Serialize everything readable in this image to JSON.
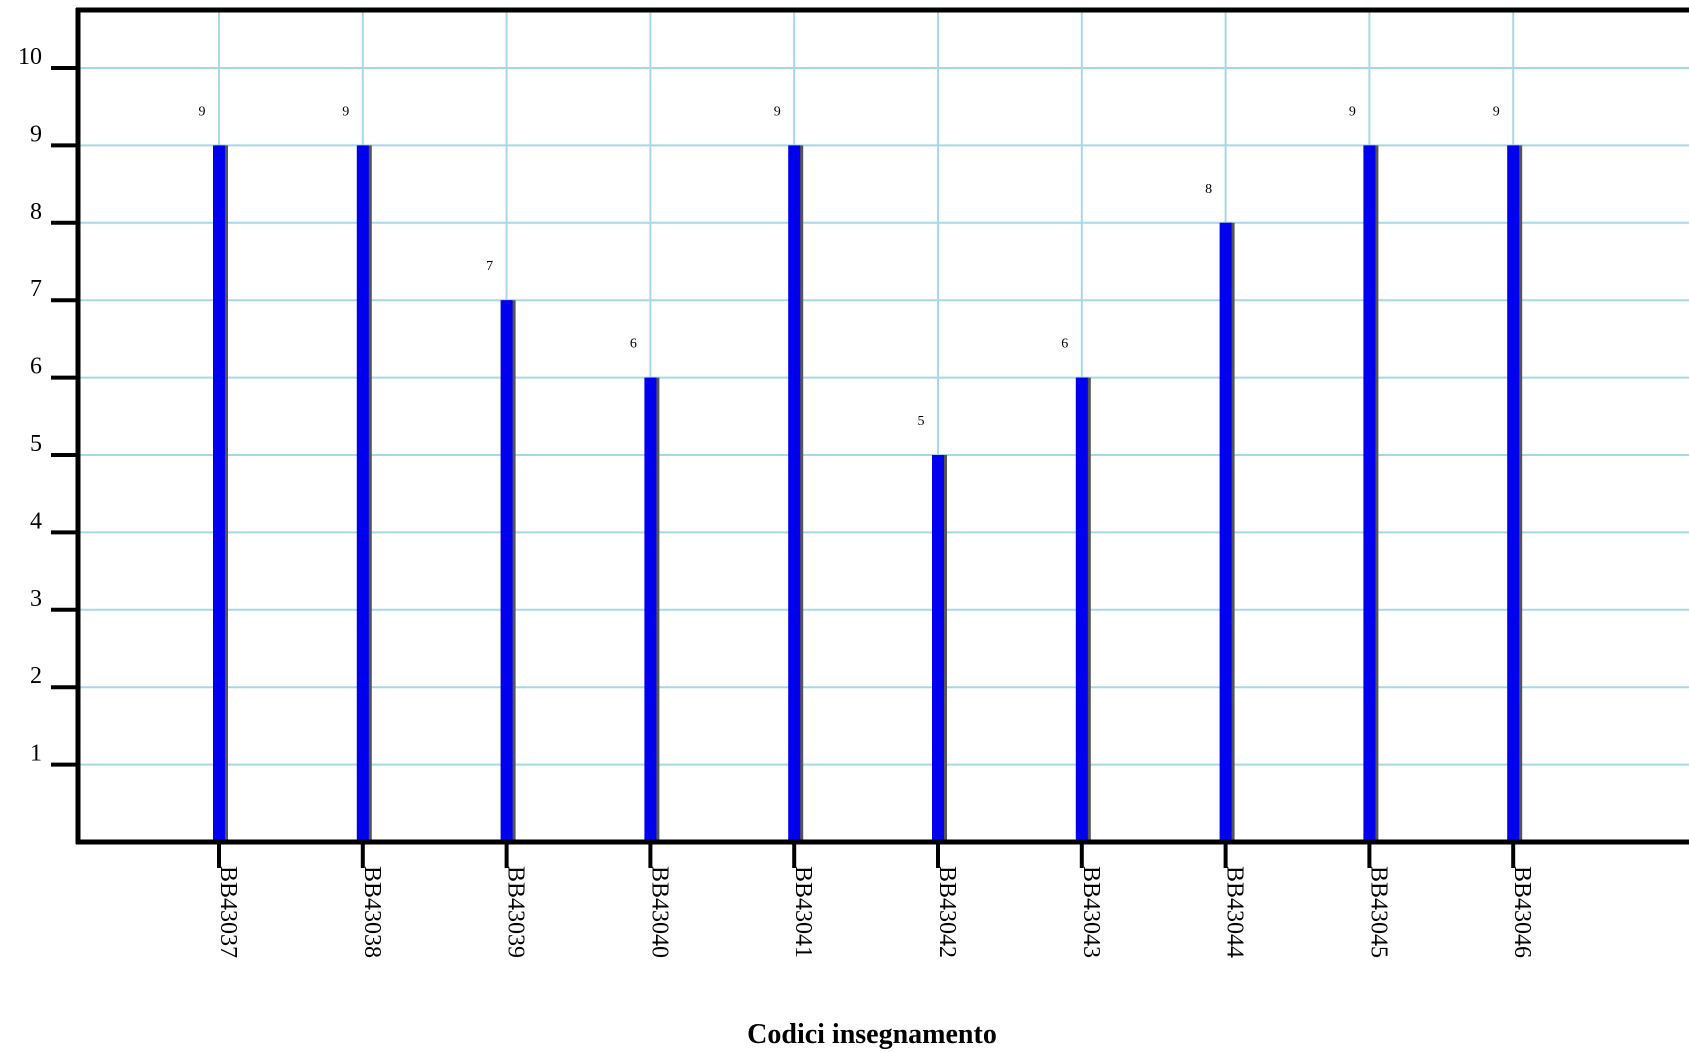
{
  "chart_data": {
    "type": "bar",
    "title": "",
    "xlabel": "Codici insegnamento",
    "ylabel": "",
    "categories": [
      "BB43037",
      "BB43038",
      "BB43039",
      "BB43040",
      "BB43041",
      "BB43042",
      "BB43043",
      "BB43044",
      "BB43045",
      "BB43046"
    ],
    "values": [
      9,
      9,
      7,
      6,
      9,
      5,
      6,
      8,
      9,
      9
    ],
    "ylim": [
      0,
      11
    ],
    "yticks": [
      1,
      2,
      3,
      4,
      5,
      6,
      7,
      8,
      9,
      10
    ],
    "grid": true,
    "legend": "none",
    "colors": {
      "bar": "#0000ee",
      "bar_shadow": "#555555",
      "grid": "#a8d8e6",
      "axis": "#000000"
    }
  }
}
